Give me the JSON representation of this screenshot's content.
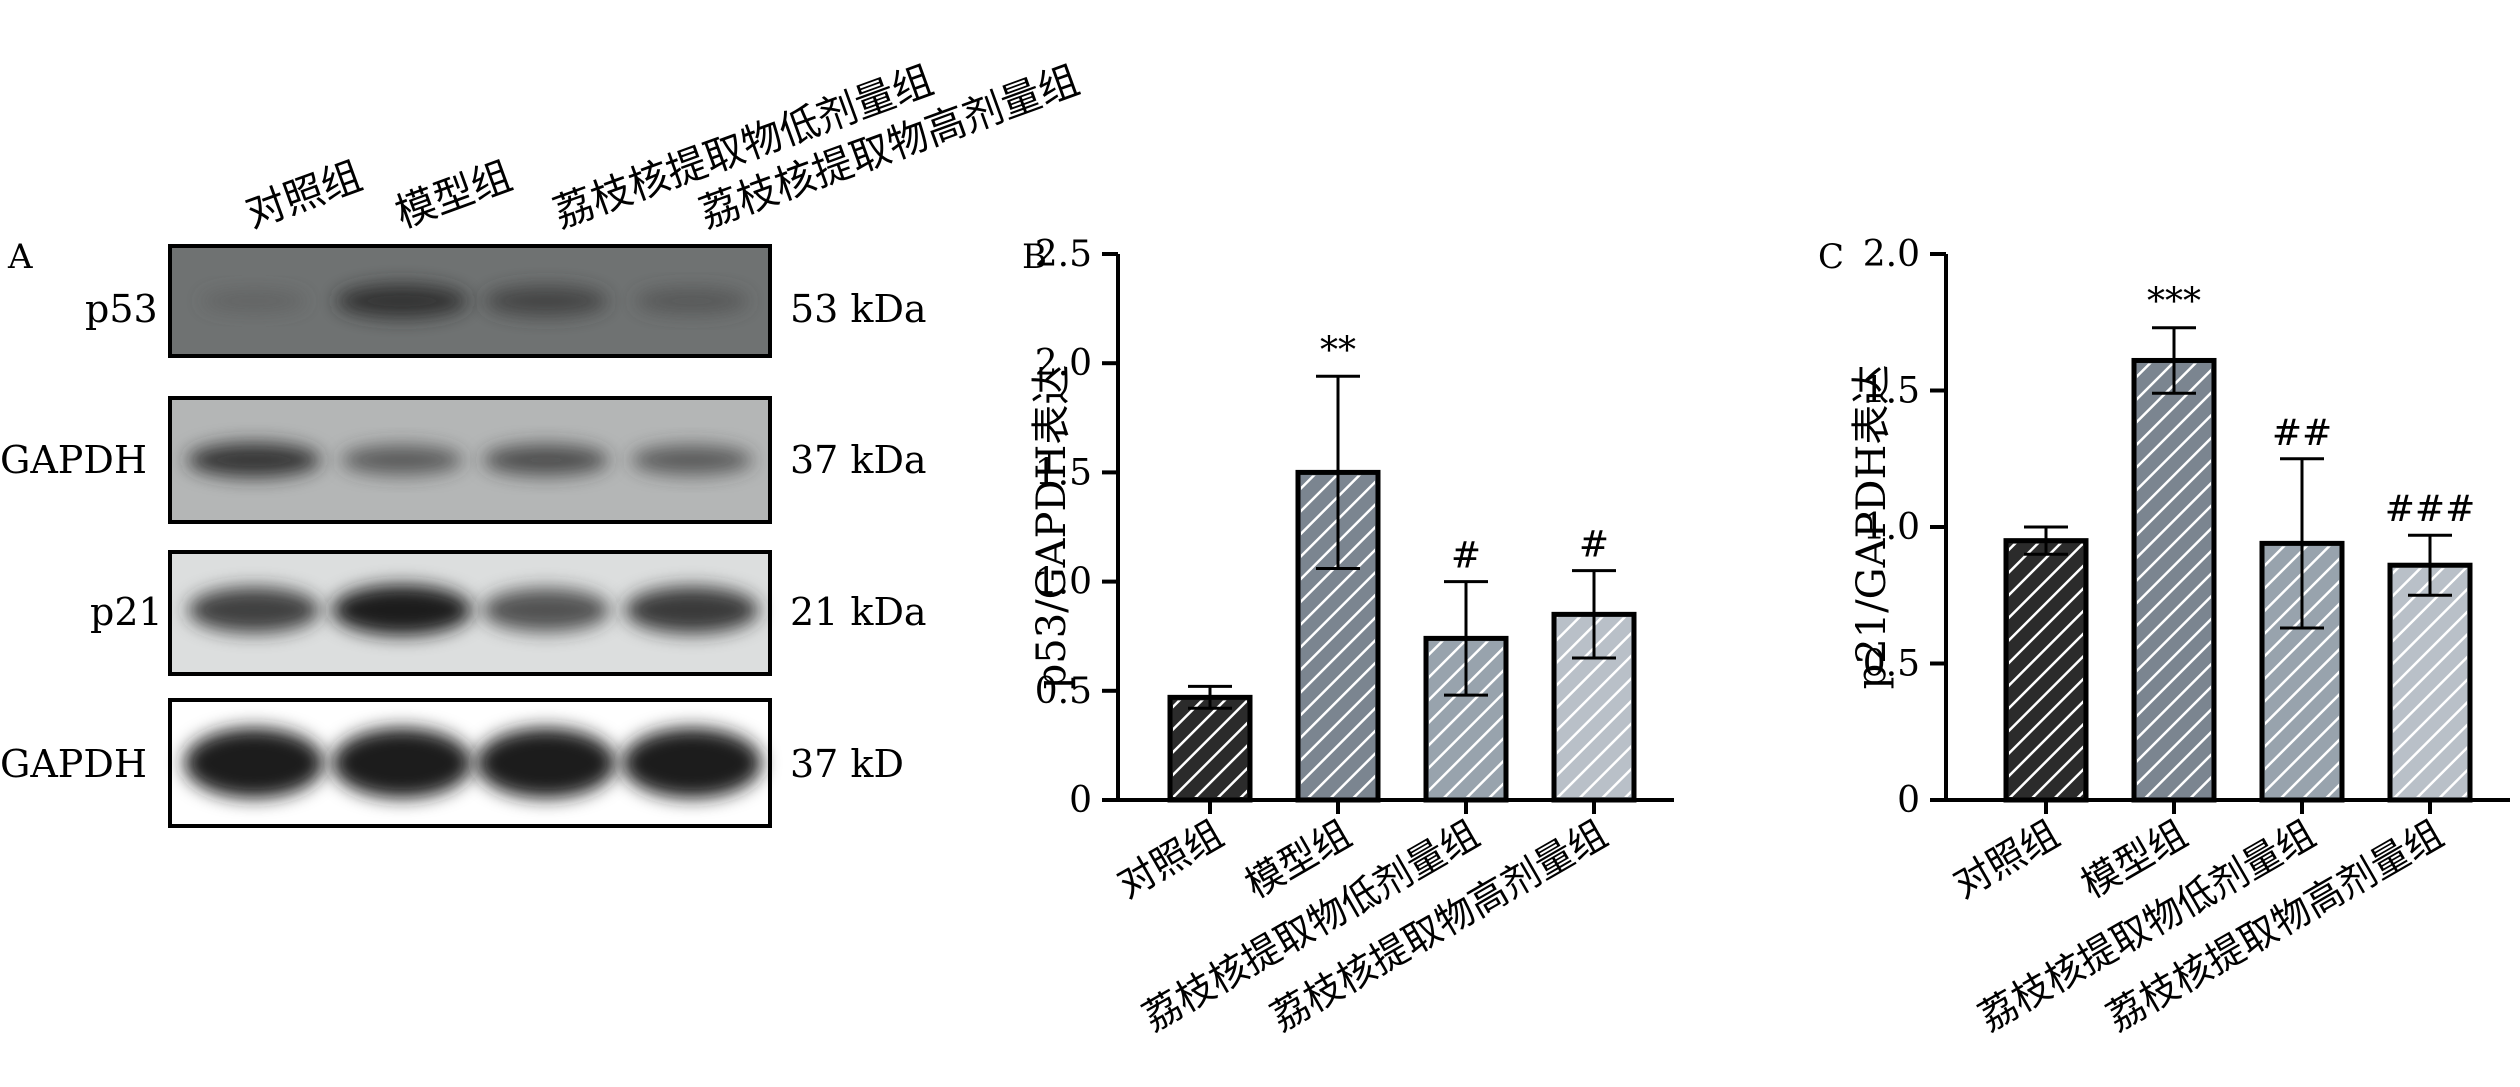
{
  "panel_a": {
    "label": "A",
    "lanes": [
      "对照组",
      "模型组",
      "荔枝核提取物低剂量组",
      "荔枝核提取物高剂量组"
    ],
    "blots": [
      {
        "name": "p53",
        "size": "53 kDa",
        "band_intensity": [
          0.15,
          0.8,
          0.6,
          0.35
        ]
      },
      {
        "name": "GAPDH",
        "size": "37 kDa",
        "band_intensity": [
          0.85,
          0.55,
          0.65,
          0.55
        ]
      },
      {
        "name": "p21",
        "size": "21 kDa",
        "band_intensity": [
          0.8,
          1.0,
          0.7,
          0.85
        ]
      },
      {
        "name": "GAPDH",
        "size": "37 kD",
        "band_intensity": [
          1.0,
          1.0,
          1.0,
          1.0
        ]
      }
    ]
  },
  "chart_data": [
    {
      "panel": "B",
      "type": "bar",
      "ylabel": "p53/GAPDH表达",
      "ylim": [
        0,
        2.5
      ],
      "yticks": [
        "0",
        "0.5",
        "1.0",
        "1.5",
        "2.0",
        "2.5"
      ],
      "categories": [
        "对照组",
        "模型组",
        "荔枝核提取物低剂量组",
        "荔枝核提取物高剂量组"
      ],
      "values": [
        0.47,
        1.5,
        0.74,
        0.85
      ],
      "errors": [
        0.05,
        0.44,
        0.26,
        0.2
      ],
      "annotations": [
        "",
        "**",
        "#",
        "#"
      ],
      "bar_fills": [
        "#2b2b2b",
        "#7b8590",
        "#98a3ad",
        "#b9c0c8"
      ]
    },
    {
      "panel": "C",
      "type": "bar",
      "ylabel": "p21/GAPDH表达",
      "ylim": [
        0,
        2.0
      ],
      "yticks": [
        "0",
        "0.5",
        "1.0",
        "1.5",
        "2.0"
      ],
      "categories": [
        "对照组",
        "模型组",
        "荔枝核提取物低剂量组",
        "荔枝核提取物高剂量组"
      ],
      "values": [
        0.95,
        1.61,
        0.94,
        0.86
      ],
      "errors": [
        0.05,
        0.12,
        0.31,
        0.11
      ],
      "annotations": [
        "",
        "***",
        "##",
        "###"
      ],
      "bar_fills": [
        "#2b2b2b",
        "#7b8590",
        "#98a3ad",
        "#b9c0c8"
      ]
    }
  ]
}
